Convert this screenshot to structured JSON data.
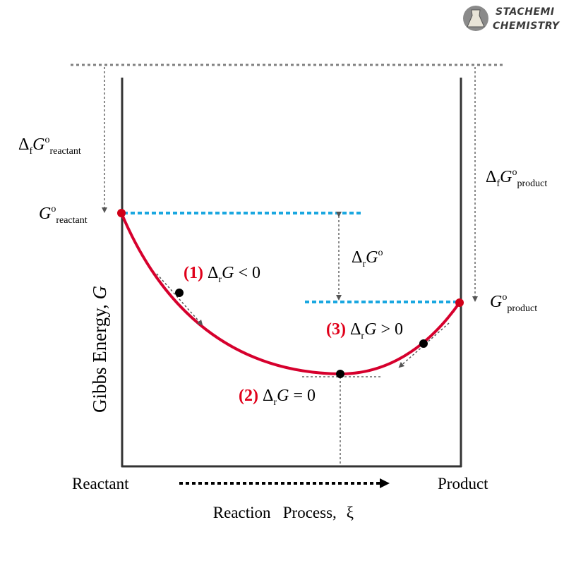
{
  "brand": {
    "line1": "STACHEMI",
    "line2": "CHEMISTRY",
    "logo_icon": "flask-logo-icon"
  },
  "axes": {
    "y_label_main": "Gibbs Energy, ",
    "y_label_var": "G",
    "x_start": "Reactant",
    "x_end": "Product",
    "x_title_main": "Reaction   Process,",
    "x_title_var": "ξ"
  },
  "labels": {
    "delta": "Δ",
    "f": "f",
    "r": "r",
    "G": "G",
    "deg": "o",
    "reactant": "reactant",
    "product": "product"
  },
  "points": {
    "p1_num": "(1)",
    "p1_rel": " < 0",
    "p2_num": "(2)",
    "p2_rel": " = 0",
    "p3_num": "(3)",
    "p3_rel": " > 0"
  },
  "colors": {
    "curve": "#d6002d",
    "endpoint": "#d00018",
    "dashed_level": "#1aa7e0",
    "guide": "#707070",
    "axis": "#333333"
  }
}
